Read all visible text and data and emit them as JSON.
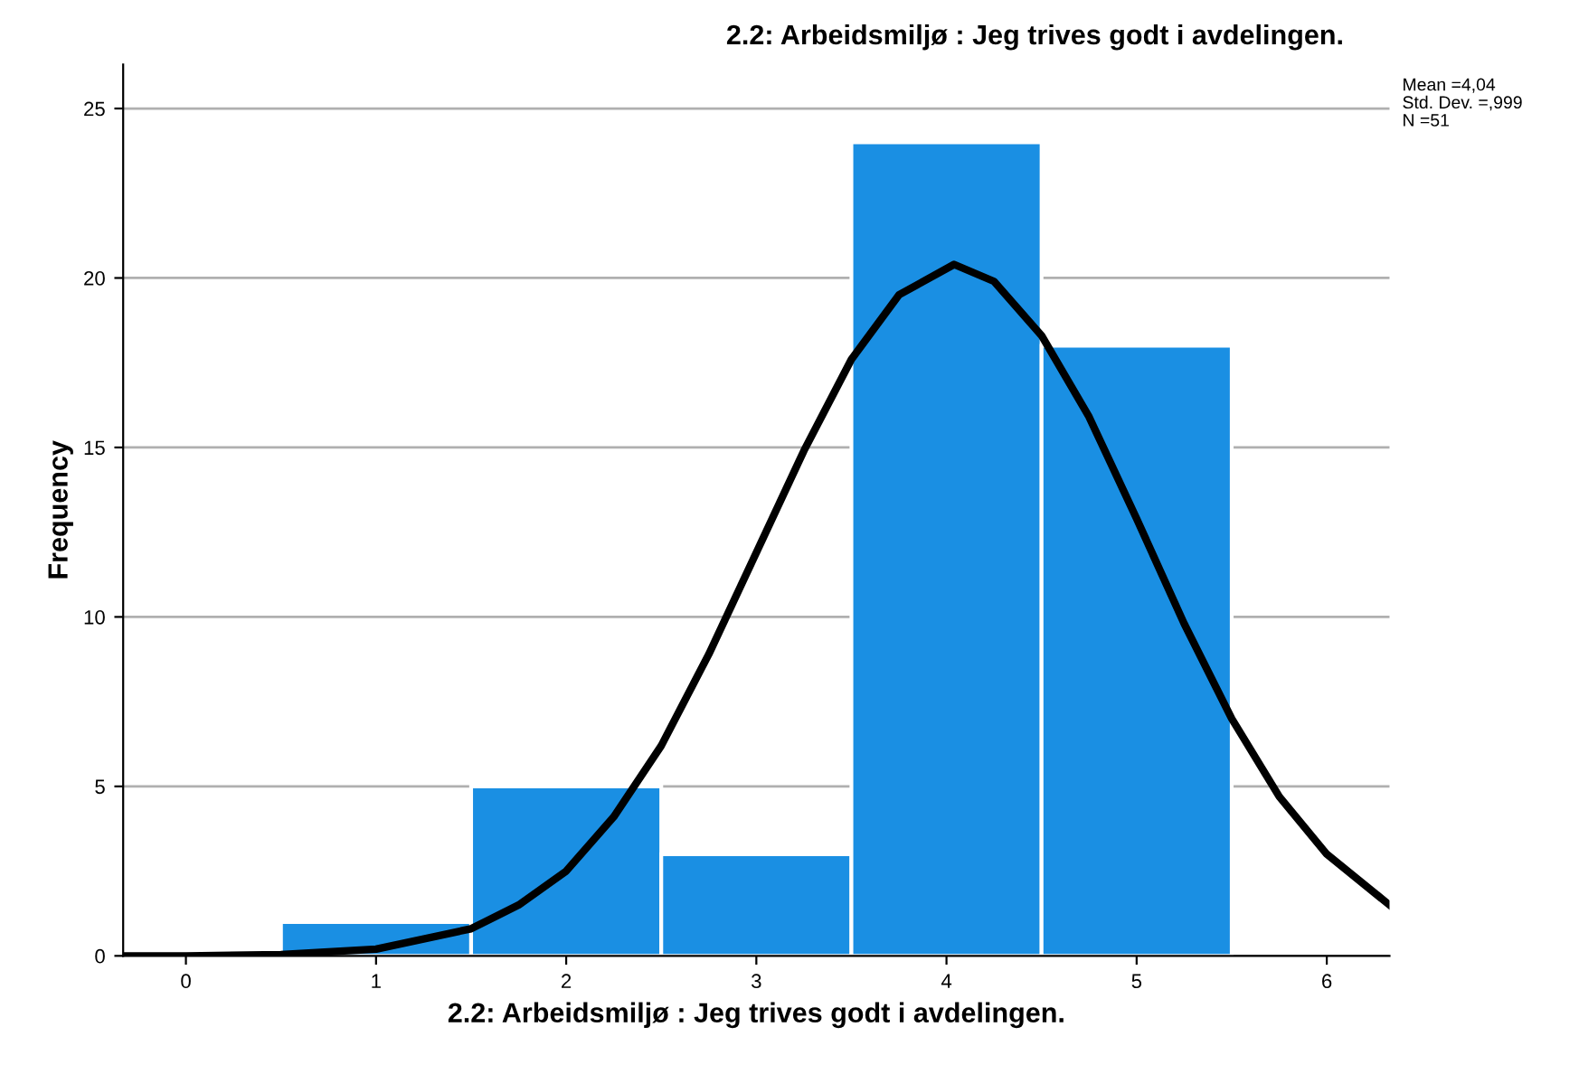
{
  "chart_data": {
    "type": "histogram",
    "title": "2.2: Arbeidsmiljø : Jeg trives godt i avdelingen.",
    "xlabel": "2.2: Arbeidsmiljø : Jeg trives godt i avdelingen.",
    "ylabel": "Frequency",
    "series": [
      {
        "bins": [
          0.5,
          1.5,
          2.5,
          3.5,
          4.5,
          5.5
        ],
        "values": [
          1,
          5,
          3,
          24,
          18
        ],
        "color": "#1a8fe3"
      },
      {
        "type": "line",
        "color": "#000000",
        "x": [
          -0.33,
          0,
          0.5,
          1,
          1.5,
          1.75,
          2,
          2.25,
          2.5,
          2.75,
          3,
          3.25,
          3.5,
          3.75,
          4.04,
          4.25,
          4.5,
          4.75,
          5,
          5.25,
          5.5,
          5.75,
          6,
          6.33
        ],
        "values": [
          0,
          0,
          0.04,
          0.2,
          0.8,
          1.5,
          2.5,
          4.1,
          6.2,
          8.9,
          11.9,
          14.9,
          17.6,
          19.5,
          20.4,
          19.9,
          18.3,
          15.9,
          12.9,
          9.8,
          7.0,
          4.7,
          3.0,
          1.5
        ]
      }
    ],
    "annotations": [
      "Mean =4,04",
      "Std. Dev. =,999",
      "N =51"
    ],
    "xlim": [
      -0.33,
      6.33
    ],
    "xticks": [
      0,
      1,
      2,
      3,
      4,
      5,
      6
    ],
    "ylim": [
      0,
      26.3
    ],
    "yticks": [
      0,
      5,
      10,
      15,
      20,
      25
    ],
    "grid": "y",
    "legend": false,
    "marker": "none",
    "line_style": "solid"
  }
}
